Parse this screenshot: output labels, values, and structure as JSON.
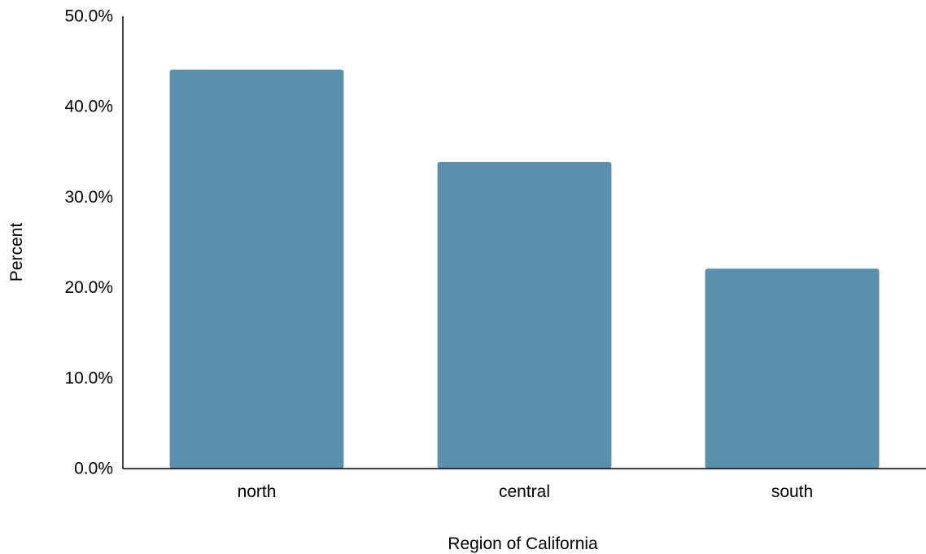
{
  "chart_data": {
    "type": "bar",
    "title": "",
    "xlabel": "Region of California",
    "ylabel": "Percent",
    "categories": [
      "north",
      "central",
      "south"
    ],
    "values": [
      44.1,
      33.9,
      22.1
    ],
    "ylim": [
      0,
      50
    ],
    "yticks": [
      0,
      10,
      20,
      30,
      40,
      50
    ],
    "ytick_labels": [
      "0.0%",
      "10.0%",
      "20.0%",
      "30.0%",
      "40.0%",
      "50.0%"
    ],
    "grid": false,
    "legend": "none",
    "bar_color": "#5990ae",
    "axis_color": "#000000"
  }
}
